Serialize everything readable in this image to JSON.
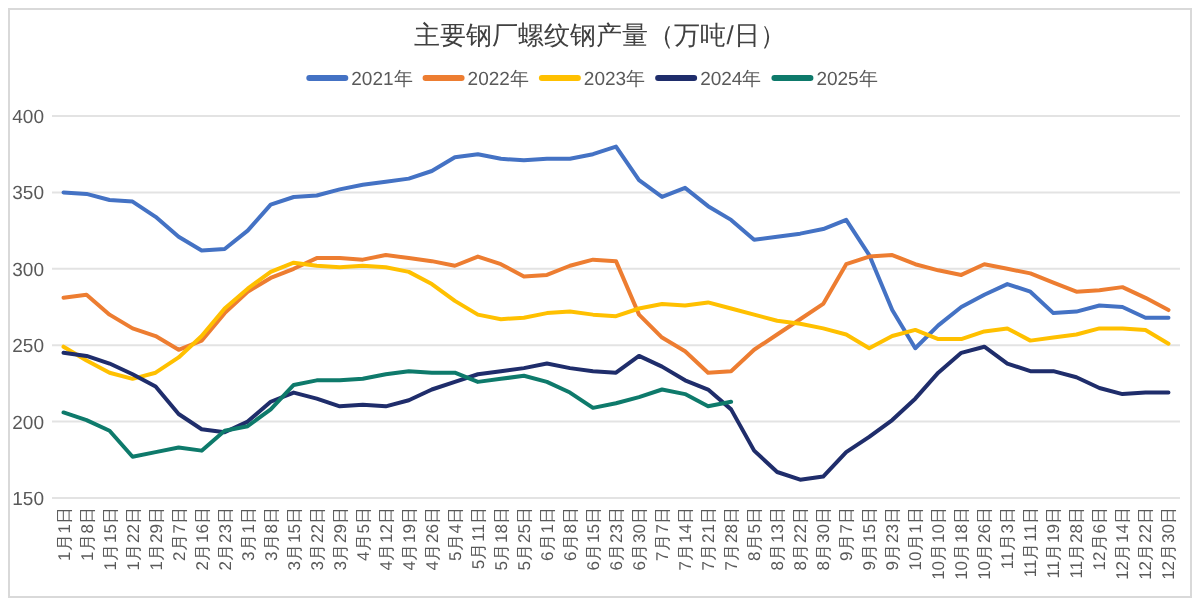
{
  "chart_data": {
    "type": "line",
    "title": "主要钢厂螺纹钢产量（万吨/日）",
    "legend": "top",
    "grid": "y",
    "marker": "none",
    "line_style": "solid",
    "categories": [
      "1月1日",
      "1月8日",
      "1月15日",
      "1月22日",
      "1月29日",
      "2月7日",
      "2月16日",
      "2月23日",
      "3月1日",
      "3月8日",
      "3月15日",
      "3月22日",
      "3月29日",
      "4月5日",
      "4月12日",
      "4月19日",
      "4月26日",
      "5月4日",
      "5月11日",
      "5月18日",
      "5月25日",
      "6月1日",
      "6月8日",
      "6月15日",
      "6月23日",
      "6月30日",
      "7月7日",
      "7月14日",
      "7月21日",
      "7月28日",
      "8月5日",
      "8月13日",
      "8月22日",
      "8月30日",
      "9月7日",
      "9月15日",
      "9月23日",
      "10月1日",
      "10月10日",
      "10月18日",
      "10月26日",
      "11月3日",
      "11月11日",
      "11月19日",
      "11月28日",
      "12月6日",
      "12月14日",
      "12月22日",
      "12月30日"
    ],
    "ylim": [
      150,
      400
    ],
    "yticks": [
      150,
      200,
      250,
      300,
      350,
      400
    ],
    "series": [
      {
        "name": "2021年",
        "color": "#4472c4",
        "values": [
          350,
          349,
          345,
          344,
          334,
          321,
          312,
          313,
          325,
          342,
          347,
          348,
          352,
          355,
          357,
          359,
          364,
          373,
          375,
          372,
          371,
          372,
          372,
          375,
          380,
          358,
          347,
          353,
          341,
          332,
          319,
          321,
          323,
          326,
          332,
          309,
          273,
          248,
          263,
          275,
          283,
          290,
          285,
          271,
          272,
          276,
          275,
          268,
          268
        ]
      },
      {
        "name": "2022年",
        "color": "#ed7d31",
        "values": [
          281,
          283,
          270,
          261,
          256,
          247,
          253,
          271,
          285,
          294,
          300,
          307,
          307,
          306,
          309,
          307,
          305,
          302,
          308,
          303,
          295,
          296,
          302,
          306,
          305,
          270,
          255,
          246,
          232,
          233,
          247,
          257,
          267,
          277,
          303,
          308,
          309,
          303,
          299,
          296,
          303,
          300,
          297,
          291,
          285,
          286,
          288,
          281,
          273
        ]
      },
      {
        "name": "2023年",
        "color": "#ffc000",
        "values": [
          249,
          240,
          232,
          228,
          232,
          242,
          256,
          274,
          287,
          298,
          304,
          302,
          301,
          302,
          301,
          298,
          290,
          279,
          270,
          267,
          268,
          271,
          272,
          270,
          269,
          274,
          277,
          276,
          278,
          274,
          270,
          266,
          264,
          261,
          257,
          248,
          256,
          260,
          254,
          254,
          259,
          261,
          253,
          255,
          257,
          261,
          261,
          260,
          251
        ]
      },
      {
        "name": "2024年",
        "color": "#1f2d6b",
        "values": [
          245,
          243,
          238,
          231,
          223,
          205,
          195,
          193,
          200,
          213,
          219,
          215,
          210,
          211,
          210,
          214,
          221,
          226,
          231,
          233,
          235,
          238,
          235,
          233,
          232,
          243,
          236,
          227,
          221,
          208,
          181,
          167,
          162,
          164,
          180,
          190,
          201,
          215,
          232,
          245,
          249,
          238,
          233,
          233,
          229,
          222,
          218,
          219,
          219
        ]
      },
      {
        "name": "2025年",
        "color": "#0e7a6b",
        "values": [
          206,
          201,
          194,
          177,
          180,
          183,
          181,
          194,
          197,
          208,
          224,
          227,
          227,
          228,
          231,
          233,
          232,
          232,
          226,
          228,
          230,
          226,
          219,
          209,
          212,
          216,
          221,
          218,
          210,
          213,
          null,
          null,
          null,
          null,
          null,
          null,
          null,
          null,
          null,
          null,
          null,
          null,
          null,
          null,
          null,
          null,
          null,
          null,
          null
        ]
      }
    ]
  }
}
